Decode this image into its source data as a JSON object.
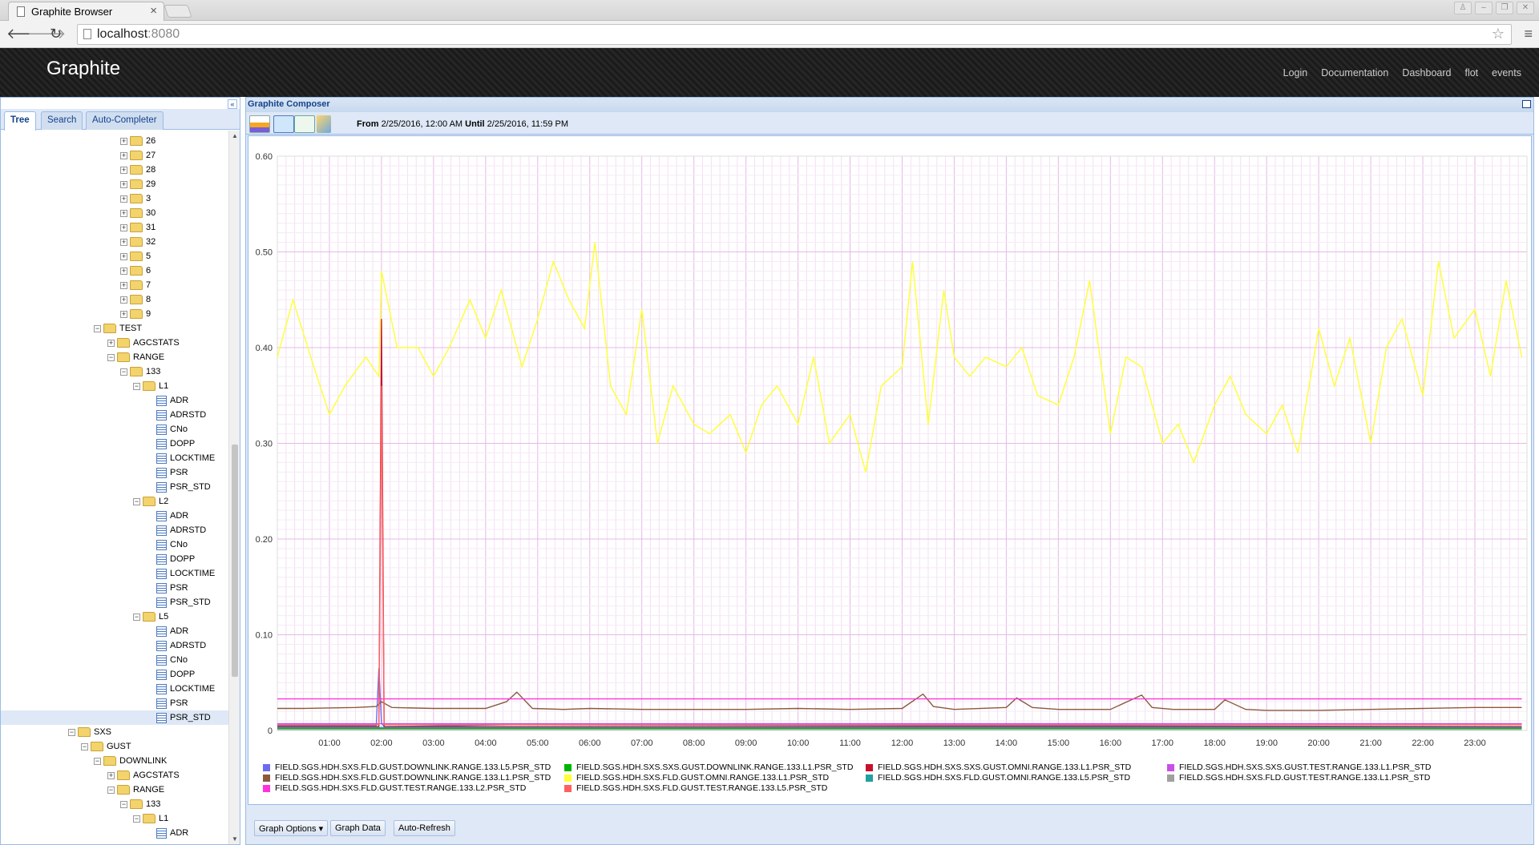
{
  "browser": {
    "tab_title": "Graphite Browser",
    "url_host": "localhost",
    "url_port": ":8080"
  },
  "header": {
    "brand": "Graphite",
    "links": [
      "Login",
      "Documentation",
      "Dashboard",
      "flot",
      "events"
    ]
  },
  "tree_panel": {
    "tabs": [
      "Tree",
      "Search",
      "Auto-Completer"
    ],
    "active_tab": "Tree",
    "selected": "PSR_STD"
  },
  "composer": {
    "title": "Graphite Composer",
    "from_label": "From",
    "from_value": "2/25/2016, 12:00 AM",
    "until_label": "Until",
    "until_value": "2/25/2016, 11:59 PM",
    "buttons": [
      "Graph Options",
      "Graph Data",
      "Auto-Refresh"
    ]
  },
  "chart_data": {
    "type": "line",
    "ylim": [
      0,
      0.6
    ],
    "y_ticks": [
      "0",
      "0.10",
      "0.20",
      "0.30",
      "0.40",
      "0.50",
      "0.60"
    ],
    "x_ticks": [
      "01:00",
      "02:00",
      "03:00",
      "04:00",
      "05:00",
      "06:00",
      "07:00",
      "08:00",
      "09:00",
      "10:00",
      "11:00",
      "12:00",
      "13:00",
      "14:00",
      "15:00",
      "16:00",
      "17:00",
      "18:00",
      "19:00",
      "20:00",
      "21:00",
      "22:00",
      "23:00"
    ],
    "grid": true,
    "series": [
      {
        "name": "FIELD.SGS.HDH.SXS.FLD.GUST.DOWNLINK.RANGE.133.L5.PSR_STD",
        "color": "#6c6cf0",
        "x": [
          0,
          1.9,
          1.95,
          2.0,
          2.05,
          4.5,
          23.9
        ],
        "y": [
          0.005,
          0.005,
          0.065,
          0.008,
          0.004,
          0.006,
          0.004
        ]
      },
      {
        "name": "FIELD.SGS.HDH.SXS.SXS.GUST.DOWNLINK.RANGE.133.L1.PSR_STD",
        "color": "#00b400",
        "x": [
          0,
          23.9
        ],
        "y": [
          0.002,
          0.002
        ]
      },
      {
        "name": "FIELD.SGS.HDH.SXS.SXS.GUST.OMNI.RANGE.133.L1.PSR_STD",
        "color": "#c8102e",
        "x": [
          0,
          1.95,
          2.0,
          2.05,
          23.9
        ],
        "y": [
          0.004,
          0.004,
          0.43,
          0.004,
          0.004
        ]
      },
      {
        "name": "FIELD.SGS.HDH.SXS.SXS.GUST.TEST.RANGE.133.L1.PSR_STD",
        "color": "#c94fe8",
        "x": [
          0,
          23.9
        ],
        "y": [
          0.007,
          0.007
        ]
      },
      {
        "name": "FIELD.SGS.HDH.SXS.FLD.GUST.DOWNLINK.RANGE.133.L1.PSR_STD",
        "color": "#8b5a3c",
        "x": [
          0,
          0.5,
          1.5,
          1.9,
          2.0,
          2.2,
          3.0,
          4.0,
          4.4,
          4.6,
          4.9,
          5.5,
          6.0,
          7.0,
          8.0,
          9.0,
          10.0,
          11.0,
          12.0,
          12.4,
          12.6,
          13.0,
          14.0,
          14.2,
          14.5,
          15.0,
          16.0,
          16.6,
          16.8,
          17.2,
          18.0,
          18.2,
          18.6,
          19.0,
          20.0,
          21.0,
          22.0,
          23.0,
          23.9
        ],
        "y": [
          0.023,
          0.023,
          0.024,
          0.025,
          0.03,
          0.024,
          0.023,
          0.023,
          0.03,
          0.04,
          0.023,
          0.022,
          0.023,
          0.022,
          0.022,
          0.022,
          0.023,
          0.022,
          0.023,
          0.038,
          0.025,
          0.022,
          0.024,
          0.034,
          0.024,
          0.022,
          0.022,
          0.037,
          0.024,
          0.022,
          0.022,
          0.032,
          0.022,
          0.021,
          0.021,
          0.022,
          0.023,
          0.024,
          0.024
        ]
      },
      {
        "name": "FIELD.SGS.HDH.SXS.FLD.GUST.OMNI.RANGE.133.L1.PSR_STD",
        "color": "#ffff33",
        "x": [
          0,
          0.3,
          0.7,
          1.0,
          1.3,
          1.7,
          1.95,
          2.0,
          2.3,
          2.7,
          3.0,
          3.3,
          3.7,
          4.0,
          4.3,
          4.7,
          5.0,
          5.3,
          5.6,
          5.9,
          6.1,
          6.4,
          6.7,
          7.0,
          7.3,
          7.6,
          8.0,
          8.3,
          8.7,
          9.0,
          9.3,
          9.6,
          10.0,
          10.3,
          10.6,
          11.0,
          11.3,
          11.6,
          12.0,
          12.2,
          12.5,
          12.8,
          13.0,
          13.3,
          13.6,
          14.0,
          14.3,
          14.6,
          15.0,
          15.3,
          15.6,
          16.0,
          16.3,
          16.6,
          17.0,
          17.3,
          17.6,
          18.0,
          18.3,
          18.6,
          19.0,
          19.3,
          19.6,
          20.0,
          20.3,
          20.6,
          21.0,
          21.3,
          21.6,
          22.0,
          22.3,
          22.6,
          23.0,
          23.3,
          23.6,
          23.9
        ],
        "y": [
          0.39,
          0.45,
          0.38,
          0.33,
          0.36,
          0.39,
          0.37,
          0.48,
          0.4,
          0.4,
          0.37,
          0.4,
          0.45,
          0.41,
          0.46,
          0.38,
          0.43,
          0.49,
          0.45,
          0.42,
          0.51,
          0.36,
          0.33,
          0.44,
          0.3,
          0.36,
          0.32,
          0.31,
          0.33,
          0.29,
          0.34,
          0.36,
          0.32,
          0.39,
          0.3,
          0.33,
          0.27,
          0.36,
          0.38,
          0.49,
          0.32,
          0.46,
          0.39,
          0.37,
          0.39,
          0.38,
          0.4,
          0.35,
          0.34,
          0.39,
          0.47,
          0.31,
          0.39,
          0.38,
          0.3,
          0.32,
          0.28,
          0.34,
          0.37,
          0.33,
          0.31,
          0.34,
          0.29,
          0.42,
          0.36,
          0.41,
          0.3,
          0.4,
          0.43,
          0.35,
          0.49,
          0.41,
          0.44,
          0.37,
          0.47,
          0.39
        ]
      },
      {
        "name": "FIELD.SGS.HDH.SXS.FLD.GUST.OMNI.RANGE.133.L5.PSR_STD",
        "color": "#20a0a0",
        "x": [
          0,
          23.9
        ],
        "y": [
          0.003,
          0.003
        ]
      },
      {
        "name": "FIELD.SGS.HDH.SXS.FLD.GUST.TEST.RANGE.133.L1.PSR_STD",
        "color": "#a0a0a0",
        "x": [
          0,
          23.9
        ],
        "y": [
          0.001,
          0.001
        ]
      },
      {
        "name": "FIELD.SGS.HDH.SXS.FLD.GUST.TEST.RANGE.133.L2.PSR_STD",
        "color": "#ff33dd",
        "x": [
          0,
          23.9
        ],
        "y": [
          0.033,
          0.033
        ]
      },
      {
        "name": "FIELD.SGS.HDH.SXS.FLD.GUST.TEST.RANGE.133.L5.PSR_STD",
        "color": "#ff6060",
        "x": [
          0,
          1.95,
          2.0,
          2.05,
          23.9
        ],
        "y": [
          0.006,
          0.006,
          0.36,
          0.006,
          0.006
        ]
      }
    ]
  }
}
